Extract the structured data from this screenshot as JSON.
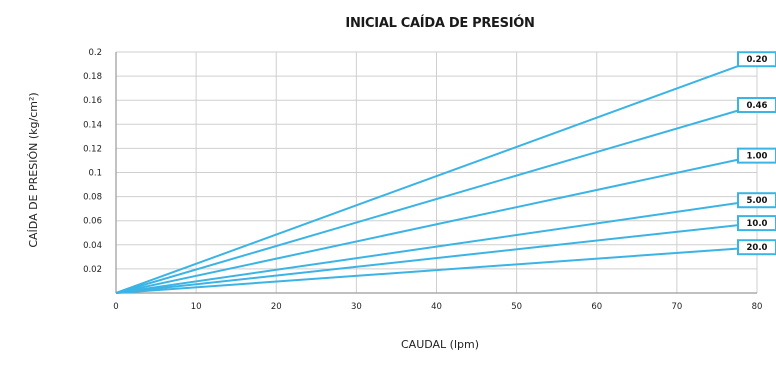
{
  "chart_data": {
    "type": "line",
    "title": "INICIAL CAÍDA DE PRESIÓN",
    "xlabel": "CAUDAL (lpm)",
    "ylabel": "CAÍDA DE PRESIÓN (kg/cm²)",
    "xlim": [
      0,
      80
    ],
    "ylim": [
      0,
      0.2
    ],
    "x_ticks": [
      "0",
      "10",
      "20",
      "30",
      "40",
      "50",
      "60",
      "70",
      "80"
    ],
    "y_ticks": [
      "0.02",
      "0.04",
      "0.06",
      "0.08",
      "0.1",
      "0.12",
      "0.14",
      "0.16",
      "0.18",
      "0.2"
    ],
    "grid": true,
    "series_color": "#3bb4e5",
    "series": [
      {
        "name": "0.20",
        "points": [
          [
            0,
            0
          ],
          [
            80,
            0.194
          ]
        ]
      },
      {
        "name": "0.46",
        "points": [
          [
            0,
            0
          ],
          [
            80,
            0.156
          ]
        ]
      },
      {
        "name": "1.00",
        "points": [
          [
            0,
            0
          ],
          [
            80,
            0.114
          ]
        ]
      },
      {
        "name": "5.00",
        "points": [
          [
            0,
            0
          ],
          [
            80,
            0.077
          ]
        ]
      },
      {
        "name": "10.0",
        "points": [
          [
            0,
            0
          ],
          [
            80,
            0.058
          ]
        ]
      },
      {
        "name": "20.0",
        "points": [
          [
            0,
            0
          ],
          [
            80,
            0.038
          ]
        ]
      }
    ]
  }
}
